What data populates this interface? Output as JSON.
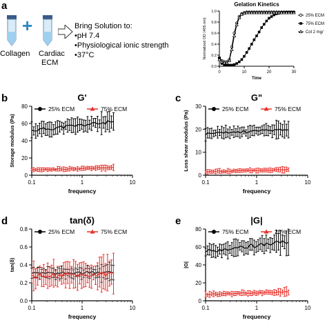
{
  "panels": {
    "a": {
      "letter": "a",
      "tube1_label": "Collagen",
      "plus": "+",
      "tube2_label_line1": "Cardiac",
      "tube2_label_line2": "ECM",
      "steps_title": "Bring Solution to:",
      "steps": [
        "•pH 7.4",
        "•Physiological ionic strength",
        "•37°C"
      ]
    },
    "b": {
      "letter": "b"
    },
    "c": {
      "letter": "c"
    },
    "d": {
      "letter": "d"
    },
    "e": {
      "letter": "e"
    }
  },
  "colors": {
    "black": "#000000",
    "red": "#e8312a"
  },
  "chart_data": [
    {
      "id": "gelation",
      "type": "line",
      "title": "Gelation Kinetics",
      "xlabel": "Time",
      "ylabel": "Normalized OD (405 nm)",
      "xlim": [
        0,
        30
      ],
      "ylim": [
        0,
        1.0
      ],
      "xticks": [
        0,
        10,
        20,
        30
      ],
      "yticks": [
        0.0,
        0.2,
        0.4,
        0.6,
        0.8,
        1.0
      ],
      "ytick_labels": [
        "0.0",
        "0.2",
        "0.4",
        "0.6",
        "0.8",
        "1.0"
      ],
      "grid": false,
      "legend": "right",
      "series": [
        {
          "name": "25% ECM",
          "marker": "circle-open",
          "x": [
            0,
            1,
            2,
            3,
            4,
            5,
            6,
            7,
            8,
            9,
            10,
            11,
            12,
            13,
            14,
            15,
            16,
            17,
            18,
            19,
            20,
            21,
            22,
            23,
            24,
            25,
            26,
            27,
            28,
            29,
            30
          ],
          "y": [
            0.15,
            0.1,
            0.08,
            0.08,
            0.12,
            0.35,
            0.6,
            0.78,
            0.9,
            0.95,
            0.97,
            0.98,
            0.98,
            0.98,
            0.98,
            0.98,
            0.98,
            0.98,
            0.98,
            0.98,
            0.98,
            0.98,
            0.98,
            0.98,
            0.98,
            0.98,
            0.98,
            0.98,
            0.98,
            0.98,
            0.98
          ]
        },
        {
          "name": "75% ECM",
          "marker": "square-filled",
          "x": [
            0,
            1,
            2,
            3,
            4,
            5,
            6,
            7,
            8,
            9,
            10,
            11,
            12,
            13,
            14,
            15,
            16,
            17,
            18,
            19,
            20,
            21,
            22,
            23,
            24,
            25,
            26,
            27,
            28,
            29,
            30
          ],
          "y": [
            0.15,
            0.05,
            0.02,
            0.02,
            0.02,
            0.02,
            0.03,
            0.05,
            0.08,
            0.12,
            0.18,
            0.25,
            0.32,
            0.4,
            0.48,
            0.55,
            0.62,
            0.7,
            0.76,
            0.82,
            0.87,
            0.9,
            0.93,
            0.95,
            0.96,
            0.97,
            0.97,
            0.98,
            0.98,
            0.98,
            0.98
          ]
        },
        {
          "name": "Col 2 mg/",
          "marker": "triangle-open",
          "x": [
            0,
            1,
            2,
            3,
            4,
            5,
            6,
            7,
            8,
            9,
            10,
            11,
            12,
            13,
            14,
            15,
            16,
            17,
            18,
            19,
            20,
            21,
            22,
            23,
            24,
            25,
            26,
            27,
            28,
            29,
            30
          ],
          "y": [
            0.12,
            0.08,
            0.06,
            0.06,
            0.1,
            0.3,
            0.55,
            0.75,
            0.88,
            0.94,
            0.96,
            0.97,
            0.97,
            0.97,
            0.97,
            0.97,
            0.97,
            0.97,
            0.97,
            0.97,
            0.97,
            0.97,
            0.97,
            0.97,
            0.97,
            0.97,
            0.97,
            0.97,
            0.97,
            0.97,
            0.97
          ]
        }
      ]
    },
    {
      "id": "gprime",
      "type": "line",
      "title": "G'",
      "xlabel": "frequency",
      "ylabel": "Storage modulus (Pa)",
      "xscale": "log",
      "xlim": [
        0.1,
        10
      ],
      "xticks": [
        0.1,
        1,
        10
      ],
      "xtick_labels": [
        "0.1",
        "1",
        "10"
      ],
      "ylim": [
        0,
        80
      ],
      "yticks": [
        0,
        20,
        40,
        60,
        80
      ],
      "ytick_labels": [
        "0",
        "20",
        "40",
        "60",
        "80"
      ],
      "legend": "top",
      "series": [
        {
          "name": "25% ECM",
          "color": "#000000",
          "y_start": 52,
          "y_end": 62,
          "err": 7
        },
        {
          "name": "75% ECM",
          "color": "#e8312a",
          "y_start": 6,
          "y_end": 9,
          "err": 2
        }
      ]
    },
    {
      "id": "gdoubleprime",
      "type": "line",
      "title": "G\"",
      "xlabel": "frequency",
      "ylabel": "Loss shear modulus (Pa)",
      "xscale": "log",
      "xlim": [
        0.1,
        10
      ],
      "xticks": [
        0.1,
        1,
        10
      ],
      "xtick_labels": [
        "0.1",
        "1",
        "10"
      ],
      "ylim": [
        0,
        30
      ],
      "yticks": [
        0,
        10,
        20,
        30
      ],
      "ytick_labels": [
        "0",
        "10",
        "20",
        "30"
      ],
      "legend": "top",
      "series": [
        {
          "name": "25% ECM",
          "color": "#000000",
          "y_start": 18,
          "y_end": 20,
          "err": 2
        },
        {
          "name": "75% ECM",
          "color": "#e8312a",
          "y_start": 1.5,
          "y_end": 2.5,
          "err": 0.8
        }
      ]
    },
    {
      "id": "tandelta",
      "type": "line",
      "title": "tan(δ)",
      "xlabel": "frequency",
      "ylabel": "tan(δ)",
      "xscale": "log",
      "xlim": [
        0.1,
        10
      ],
      "xticks": [
        0.1,
        1,
        10
      ],
      "xtick_labels": [
        "0.1",
        "1",
        "10"
      ],
      "ylim": [
        0.0,
        0.8
      ],
      "yticks": [
        0.0,
        0.2,
        0.4,
        0.6,
        0.8
      ],
      "ytick_labels": [
        "0.0",
        "0.2",
        "0.4",
        "0.6",
        "0.8"
      ],
      "legend": "top",
      "series": [
        {
          "name": "25% ECM",
          "color": "#000000",
          "y_start": 0.3,
          "y_end": 0.32,
          "err": 0.05
        },
        {
          "name": "75% ECM",
          "color": "#e8312a",
          "y_start": 0.28,
          "y_end": 0.3,
          "err": 0.12
        }
      ]
    },
    {
      "id": "gmod",
      "type": "line",
      "title": "|G|",
      "xlabel": "frequency",
      "ylabel": "|G|",
      "xscale": "log",
      "xlim": [
        0.1,
        10
      ],
      "xticks": [
        0.1,
        1,
        10
      ],
      "xtick_labels": [
        "0.1",
        "1",
        "10"
      ],
      "ylim": [
        0,
        80
      ],
      "yticks": [
        0,
        20,
        40,
        60,
        80
      ],
      "ytick_labels": [
        "0",
        "20",
        "40",
        "60",
        "80"
      ],
      "legend": "top",
      "series": [
        {
          "name": "75% ECM",
          "color": "#000000",
          "y_start": 55,
          "y_end": 66,
          "err": 7
        },
        {
          "name": "25% ECM",
          "color": "#e8312a",
          "y_start": 7,
          "y_end": 10,
          "err": 2.5
        }
      ]
    }
  ]
}
